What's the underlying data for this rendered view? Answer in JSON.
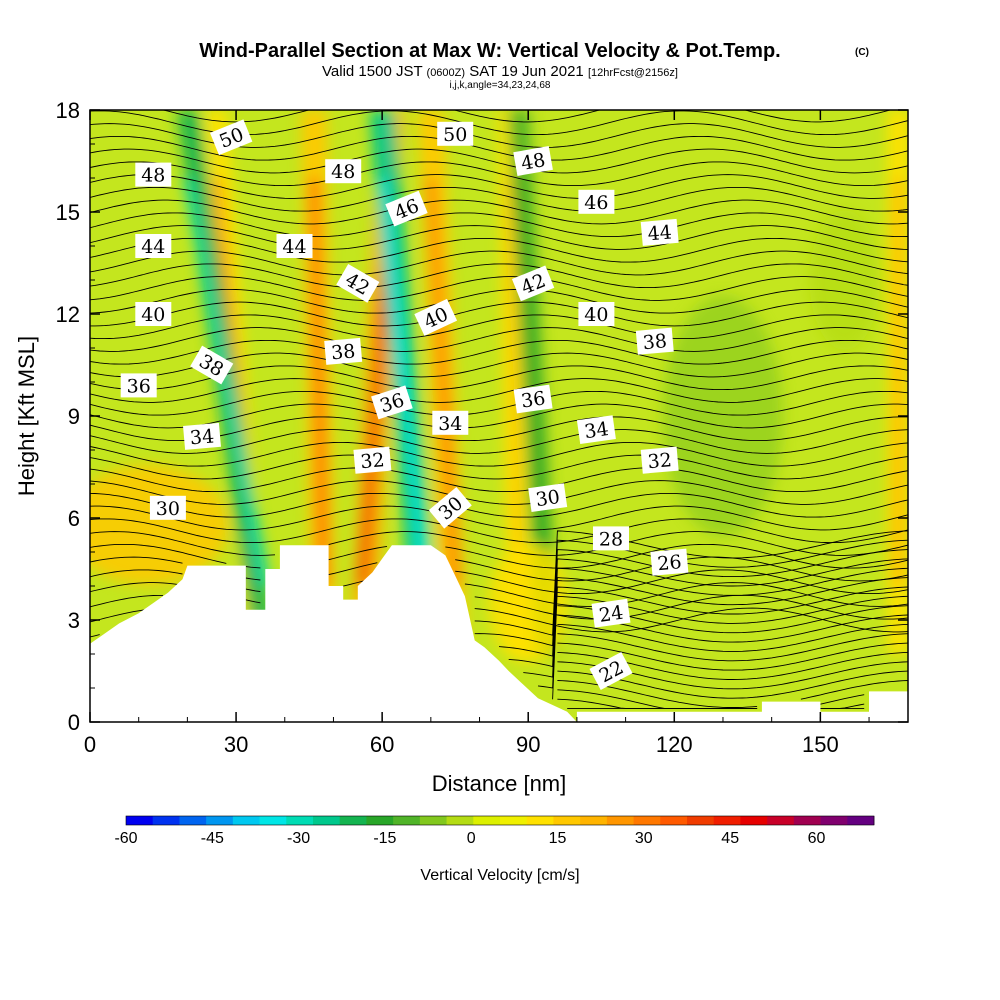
{
  "title": {
    "main": "Wind-Parallel Section at Max W: Vertical Velocity & Pot.Temp.",
    "copyright": "(C)",
    "valid_a": "Valid 1500 JST",
    "valid_utc": "(0600Z)",
    "valid_b": "SAT 19 Jun 2021",
    "forecast": "[12hrFcst@2156z]",
    "indices": "i,j,k,angle=34,23,24,68"
  },
  "chart_data": {
    "type": "heatmap",
    "xlabel": "Distance [nm]",
    "ylabel": "Height [Kft MSL]",
    "xlim": [
      0,
      168
    ],
    "ylim": [
      0,
      18
    ],
    "x_ticks": [
      0,
      30,
      60,
      90,
      120,
      150
    ],
    "y_ticks": [
      0,
      3,
      6,
      9,
      12,
      15,
      18
    ],
    "colorbar": {
      "label": "Vertical Velocity [cm/s]",
      "min": -60,
      "max": 70,
      "step": 5,
      "tick_values": [
        -60,
        -45,
        -30,
        -15,
        0,
        15,
        30,
        45,
        60
      ],
      "colors": [
        "#0000f0",
        "#0032f0",
        "#0064f0",
        "#0096f0",
        "#00c8f0",
        "#00e6e6",
        "#00dcb4",
        "#00c88c",
        "#14b450",
        "#28a628",
        "#50b428",
        "#82c81e",
        "#b4dc14",
        "#dcf000",
        "#f0f000",
        "#ffe100",
        "#ffc800",
        "#ffb400",
        "#ff9600",
        "#ff7800",
        "#ff5a00",
        "#f03c00",
        "#f01e00",
        "#e60000",
        "#c80028",
        "#a00050",
        "#80006e",
        "#640080"
      ]
    },
    "potential_temperature_contours": {
      "levels": [
        22,
        24,
        26,
        28,
        30,
        32,
        34,
        36,
        38,
        40,
        42,
        44,
        46,
        48,
        50
      ],
      "labels": [
        {
          "text": "22",
          "x": 107,
          "y": 1.5,
          "angle": -28
        },
        {
          "text": "24",
          "x": 107,
          "y": 3.2,
          "angle": -8
        },
        {
          "text": "26",
          "x": 119,
          "y": 4.7,
          "angle": -5
        },
        {
          "text": "28",
          "x": 107,
          "y": 5.4,
          "angle": 0
        },
        {
          "text": "30",
          "x": 16,
          "y": 6.3,
          "angle": 0
        },
        {
          "text": "30",
          "x": 74,
          "y": 6.3,
          "angle": -40
        },
        {
          "text": "30",
          "x": 94,
          "y": 6.6,
          "angle": -8
        },
        {
          "text": "32",
          "x": 58,
          "y": 7.7,
          "angle": -5
        },
        {
          "text": "32",
          "x": 117,
          "y": 7.7,
          "angle": -5
        },
        {
          "text": "34",
          "x": 23,
          "y": 8.4,
          "angle": -5
        },
        {
          "text": "34",
          "x": 74,
          "y": 8.8,
          "angle": 0
        },
        {
          "text": "34",
          "x": 104,
          "y": 8.6,
          "angle": -8
        },
        {
          "text": "36",
          "x": 10,
          "y": 9.9,
          "angle": 0
        },
        {
          "text": "36",
          "x": 62,
          "y": 9.4,
          "angle": -18
        },
        {
          "text": "36",
          "x": 91,
          "y": 9.5,
          "angle": -8
        },
        {
          "text": "38",
          "x": 25,
          "y": 10.5,
          "angle": 30
        },
        {
          "text": "38",
          "x": 52,
          "y": 10.9,
          "angle": -5
        },
        {
          "text": "38",
          "x": 116,
          "y": 11.2,
          "angle": -5
        },
        {
          "text": "40",
          "x": 13,
          "y": 12.0,
          "angle": 0
        },
        {
          "text": "40",
          "x": 71,
          "y": 11.9,
          "angle": -25
        },
        {
          "text": "40",
          "x": 104,
          "y": 12.0,
          "angle": 0
        },
        {
          "text": "42",
          "x": 55,
          "y": 12.9,
          "angle": 30
        },
        {
          "text": "42",
          "x": 91,
          "y": 12.9,
          "angle": -22
        },
        {
          "text": "44",
          "x": 13,
          "y": 14.0,
          "angle": 0
        },
        {
          "text": "44",
          "x": 42,
          "y": 14.0,
          "angle": 0
        },
        {
          "text": "44",
          "x": 117,
          "y": 14.4,
          "angle": -5
        },
        {
          "text": "46",
          "x": 65,
          "y": 15.1,
          "angle": -22
        },
        {
          "text": "46",
          "x": 104,
          "y": 15.3,
          "angle": 0
        },
        {
          "text": "48",
          "x": 13,
          "y": 16.1,
          "angle": 0
        },
        {
          "text": "48",
          "x": 52,
          "y": 16.2,
          "angle": 0
        },
        {
          "text": "48",
          "x": 91,
          "y": 16.5,
          "angle": -10
        },
        {
          "text": "50",
          "x": 29,
          "y": 17.2,
          "angle": -22
        },
        {
          "text": "50",
          "x": 75,
          "y": 17.3,
          "angle": 0
        }
      ]
    },
    "vertical_velocity_features": [
      {
        "kind": "updraft",
        "x_base": 34,
        "x_top": 26,
        "value": 30
      },
      {
        "kind": "updraft",
        "x_base": 48,
        "x_top": 46,
        "value": 40
      },
      {
        "kind": "updraft",
        "x_base": 56,
        "x_top": 62,
        "value": 45
      },
      {
        "kind": "updraft",
        "x_base": 75,
        "x_top": 70,
        "value": 35
      },
      {
        "kind": "updraft",
        "x_base": 88,
        "x_top": 86,
        "value": 20
      },
      {
        "kind": "updraft",
        "x_base": 166,
        "x_top": 166,
        "value": 25
      },
      {
        "kind": "downdraft",
        "x_base": 36,
        "x_top": 20,
        "value": -30
      },
      {
        "kind": "downdraft",
        "x_base": 69,
        "x_top": 60,
        "value": -35
      },
      {
        "kind": "downdraft",
        "x_base": 94,
        "x_top": 88,
        "value": -15
      }
    ],
    "terrain_top_kft": [
      {
        "x": 0,
        "y": 2.3
      },
      {
        "x": 3,
        "y": 2.6
      },
      {
        "x": 6,
        "y": 2.9
      },
      {
        "x": 10,
        "y": 3.2
      },
      {
        "x": 13,
        "y": 3.5
      },
      {
        "x": 16,
        "y": 3.8
      },
      {
        "x": 19,
        "y": 4.2
      },
      {
        "x": 20,
        "y": 4.6
      },
      {
        "x": 32,
        "y": 4.6
      },
      {
        "x": 32,
        "y": 3.3
      },
      {
        "x": 36,
        "y": 3.3
      },
      {
        "x": 36,
        "y": 4.5
      },
      {
        "x": 39,
        "y": 4.5
      },
      {
        "x": 39,
        "y": 5.2
      },
      {
        "x": 49,
        "y": 5.2
      },
      {
        "x": 49,
        "y": 4.0
      },
      {
        "x": 52,
        "y": 4.0
      },
      {
        "x": 52,
        "y": 3.6
      },
      {
        "x": 55,
        "y": 3.6
      },
      {
        "x": 55,
        "y": 4.0
      },
      {
        "x": 58,
        "y": 4.4
      },
      {
        "x": 60,
        "y": 4.8
      },
      {
        "x": 62,
        "y": 5.2
      },
      {
        "x": 70,
        "y": 5.2
      },
      {
        "x": 73,
        "y": 4.9
      },
      {
        "x": 75,
        "y": 4.3
      },
      {
        "x": 77,
        "y": 3.7
      },
      {
        "x": 79,
        "y": 2.4
      },
      {
        "x": 81,
        "y": 2.2
      },
      {
        "x": 84,
        "y": 1.8
      },
      {
        "x": 86,
        "y": 1.5
      },
      {
        "x": 89,
        "y": 1.1
      },
      {
        "x": 92,
        "y": 0.7
      },
      {
        "x": 95,
        "y": 0.5
      },
      {
        "x": 98,
        "y": 0.3
      },
      {
        "x": 100,
        "y": 0.0
      },
      {
        "x": 100,
        "y": 0.3
      },
      {
        "x": 138,
        "y": 0.3
      },
      {
        "x": 138,
        "y": 0.6
      },
      {
        "x": 150,
        "y": 0.6
      },
      {
        "x": 150,
        "y": 0.3
      },
      {
        "x": 160,
        "y": 0.3
      },
      {
        "x": 160,
        "y": 0.9
      },
      {
        "x": 168,
        "y": 0.9
      }
    ]
  }
}
